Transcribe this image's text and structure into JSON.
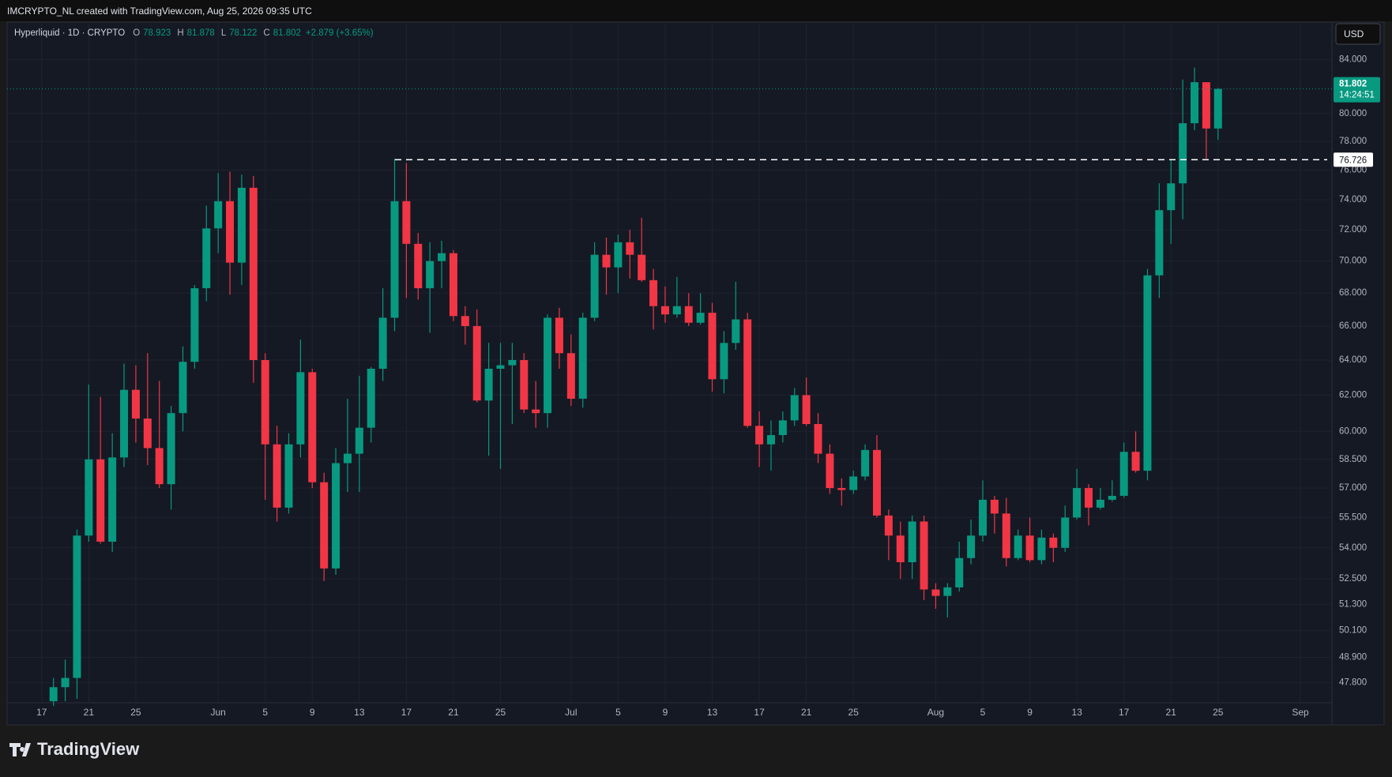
{
  "header": {
    "watermark": "IMCRYPTO_NL created with TradingView.com, Aug 25, 2026 09:35 UTC",
    "symbol": "Hyperliquid · 1D · CRYPTO",
    "ohlc_labels": [
      "O",
      "H",
      "L",
      "C"
    ],
    "change": "+2.879 (+3.65%)",
    "currency": "USD",
    "countdown": "14:24:51",
    "logo": "TradingView"
  },
  "chart_data": {
    "type": "candlestick",
    "log_scale": true,
    "grid": true,
    "up_color": "#089981",
    "down_color": "#f23645",
    "categories": [
      "17",
      null,
      null,
      null,
      "21",
      null,
      null,
      null,
      "25",
      null,
      null,
      null,
      null,
      null,
      null,
      "Jun",
      null,
      null,
      null,
      "5",
      null,
      null,
      null,
      "9",
      null,
      null,
      null,
      "13",
      null,
      null,
      null,
      "17",
      null,
      null,
      null,
      "21",
      null,
      null,
      null,
      "25",
      null,
      null,
      null,
      null,
      null,
      "Jul",
      null,
      null,
      null,
      "5",
      null,
      null,
      null,
      "9",
      null,
      null,
      null,
      "13",
      null,
      null,
      null,
      "17",
      null,
      null,
      null,
      "21",
      null,
      null,
      null,
      "25",
      null,
      null,
      null,
      null,
      null,
      null,
      "Aug",
      null,
      null,
      null,
      "5",
      null,
      null,
      null,
      "9",
      null,
      null,
      null,
      "13",
      null,
      null,
      null,
      "17",
      null,
      null,
      null,
      "21",
      null,
      null,
      null,
      "25",
      null,
      null,
      null,
      null,
      null,
      null,
      "Sep"
    ],
    "open": [
      null,
      47.0,
      47.6,
      48.0,
      54.6,
      58.5,
      54.3,
      58.6,
      62.3,
      60.7,
      59.1,
      57.2,
      61.0,
      63.9,
      68.3,
      72.1,
      73.9,
      69.9,
      74.8,
      64.0,
      59.3,
      56.0,
      59.3,
      63.3,
      57.3,
      53.0,
      58.3,
      58.8,
      60.2,
      63.5,
      66.5,
      73.9,
      71.1,
      68.3,
      70.0,
      70.5,
      66.6,
      66.0,
      61.7,
      63.5,
      63.7,
      64.0,
      61.2,
      61.0,
      66.5,
      64.4,
      61.8,
      66.5,
      70.4,
      69.6,
      71.2,
      70.4,
      68.8,
      67.2,
      66.7,
      67.2,
      66.2,
      66.8,
      62.9,
      65.0,
      66.4,
      60.3,
      59.3,
      59.8,
      60.6,
      62.0,
      60.4,
      58.8,
      57.0,
      56.9,
      57.6,
      59.0,
      55.6,
      54.6,
      53.3,
      55.3,
      52.0,
      51.7,
      52.1,
      53.5,
      54.6,
      56.4,
      55.7,
      53.5,
      54.6,
      53.4,
      54.5,
      54.0,
      55.5,
      57.0,
      56.0,
      56.4,
      56.6,
      58.9,
      57.9,
      69.1,
      73.3,
      75.1,
      79.3,
      82.3,
      78.923,
      null,
      null,
      null,
      null,
      null,
      null,
      null
    ],
    "high": [
      null,
      48.0,
      48.8,
      54.9,
      62.6,
      61.9,
      59.9,
      63.8,
      63.7,
      64.4,
      62.8,
      61.4,
      64.8,
      68.5,
      73.6,
      75.8,
      75.9,
      75.7,
      75.6,
      64.4,
      60.3,
      59.9,
      65.2,
      63.5,
      57.8,
      59.1,
      61.8,
      63.1,
      63.6,
      68.3,
      76.8,
      76.5,
      71.8,
      71.2,
      71.3,
      70.7,
      67.2,
      67.0,
      65.0,
      65.0,
      65.0,
      64.4,
      62.8,
      66.7,
      67.1,
      65.5,
      66.8,
      71.2,
      71.5,
      71.7,
      72.0,
      72.8,
      69.5,
      68.4,
      69.0,
      68.0,
      68.0,
      67.4,
      65.7,
      68.7,
      66.8,
      61.1,
      60.6,
      61.1,
      62.4,
      63.0,
      61.0,
      59.3,
      57.5,
      57.9,
      59.3,
      59.8,
      55.9,
      55.3,
      55.6,
      55.6,
      52.3,
      52.3,
      54.3,
      55.4,
      57.4,
      56.6,
      56.5,
      54.9,
      55.5,
      54.9,
      54.7,
      56.1,
      58.0,
      57.2,
      57.0,
      57.4,
      59.4,
      60.0,
      69.5,
      75.1,
      76.7,
      82.5,
      83.4,
      82.3,
      81.878,
      null,
      null,
      null,
      null,
      null,
      null,
      null
    ],
    "low": [
      null,
      46.8,
      47.0,
      47.1,
      54.3,
      54.2,
      53.8,
      58.1,
      59.4,
      58.2,
      57.0,
      55.9,
      60.0,
      63.5,
      67.5,
      70.5,
      67.9,
      68.5,
      62.7,
      56.4,
      55.3,
      55.7,
      58.6,
      57.0,
      52.4,
      52.7,
      56.8,
      56.8,
      59.4,
      62.8,
      65.7,
      67.7,
      67.6,
      65.6,
      68.3,
      66.3,
      64.9,
      61.6,
      58.7,
      58.0,
      60.4,
      61.0,
      60.2,
      60.2,
      63.5,
      61.4,
      61.3,
      66.3,
      67.9,
      68.0,
      68.9,
      68.7,
      65.8,
      66.2,
      66.5,
      66.0,
      66.1,
      62.2,
      62.1,
      64.6,
      60.2,
      58.1,
      57.9,
      59.4,
      60.3,
      60.3,
      58.3,
      56.7,
      56.1,
      56.7,
      57.4,
      55.5,
      53.4,
      52.5,
      52.5,
      51.5,
      51.1,
      50.7,
      51.9,
      53.2,
      54.3,
      54.7,
      53.1,
      53.4,
      53.3,
      53.2,
      53.3,
      53.8,
      55.4,
      55.1,
      55.9,
      56.3,
      56.5,
      57.8,
      57.4,
      67.7,
      71.1,
      72.7,
      78.8,
      76.8,
      78.122,
      null,
      null,
      null,
      null,
      null,
      null,
      null
    ],
    "close": [
      null,
      47.6,
      48.0,
      54.6,
      58.5,
      54.3,
      58.6,
      62.3,
      60.7,
      59.1,
      57.2,
      61.0,
      63.9,
      68.3,
      72.1,
      73.9,
      69.9,
      74.8,
      64.0,
      59.3,
      56.0,
      59.3,
      63.3,
      57.3,
      53.0,
      58.3,
      58.8,
      60.2,
      63.5,
      66.5,
      73.9,
      71.1,
      68.3,
      70.0,
      70.5,
      66.6,
      66.0,
      61.7,
      63.5,
      63.7,
      64.0,
      61.2,
      61.0,
      66.5,
      64.4,
      61.8,
      66.5,
      70.4,
      69.6,
      71.2,
      70.4,
      68.8,
      67.2,
      66.7,
      67.2,
      66.2,
      66.8,
      62.9,
      65.0,
      66.4,
      60.3,
      59.3,
      59.8,
      60.6,
      62.0,
      60.4,
      58.8,
      57.0,
      56.9,
      57.6,
      59.0,
      55.6,
      54.6,
      53.3,
      55.3,
      52.0,
      51.7,
      52.1,
      53.5,
      54.6,
      56.4,
      55.7,
      53.5,
      54.6,
      53.4,
      54.5,
      54.0,
      55.5,
      57.0,
      56.0,
      56.4,
      56.6,
      58.9,
      57.9,
      69.1,
      73.3,
      75.1,
      79.3,
      82.3,
      78.923,
      81.802,
      null,
      null,
      null,
      null,
      null,
      null,
      null
    ],
    "hline": 76.726,
    "ylim": [
      47.0,
      86.9
    ],
    "yticks": [
      {
        "value": 84,
        "label": "84.000"
      },
      {
        "value": 80,
        "label": "80.000"
      },
      {
        "value": 78,
        "label": "78.000"
      },
      {
        "value": 76,
        "label": "76.000"
      },
      {
        "value": 74,
        "label": "74.000"
      },
      {
        "value": 72,
        "label": "72.000"
      },
      {
        "value": 70,
        "label": "70.000"
      },
      {
        "value": 68,
        "label": "68.000"
      },
      {
        "value": 66,
        "label": "66.000"
      },
      {
        "value": 64,
        "label": "64.000"
      },
      {
        "value": 62,
        "label": "62.000"
      },
      {
        "value": 60,
        "label": "60.000"
      },
      {
        "value": 58.5,
        "label": "58.500"
      },
      {
        "value": 57,
        "label": "57.000"
      },
      {
        "value": 55.5,
        "label": "55.500"
      },
      {
        "value": 54,
        "label": "54.000"
      },
      {
        "value": 52.5,
        "label": "52.500"
      },
      {
        "value": 51.3,
        "label": "51.300"
      },
      {
        "value": 50.1,
        "label": "50.100"
      },
      {
        "value": 48.9,
        "label": "48.900"
      },
      {
        "value": 47.8,
        "label": "47.800"
      }
    ]
  }
}
